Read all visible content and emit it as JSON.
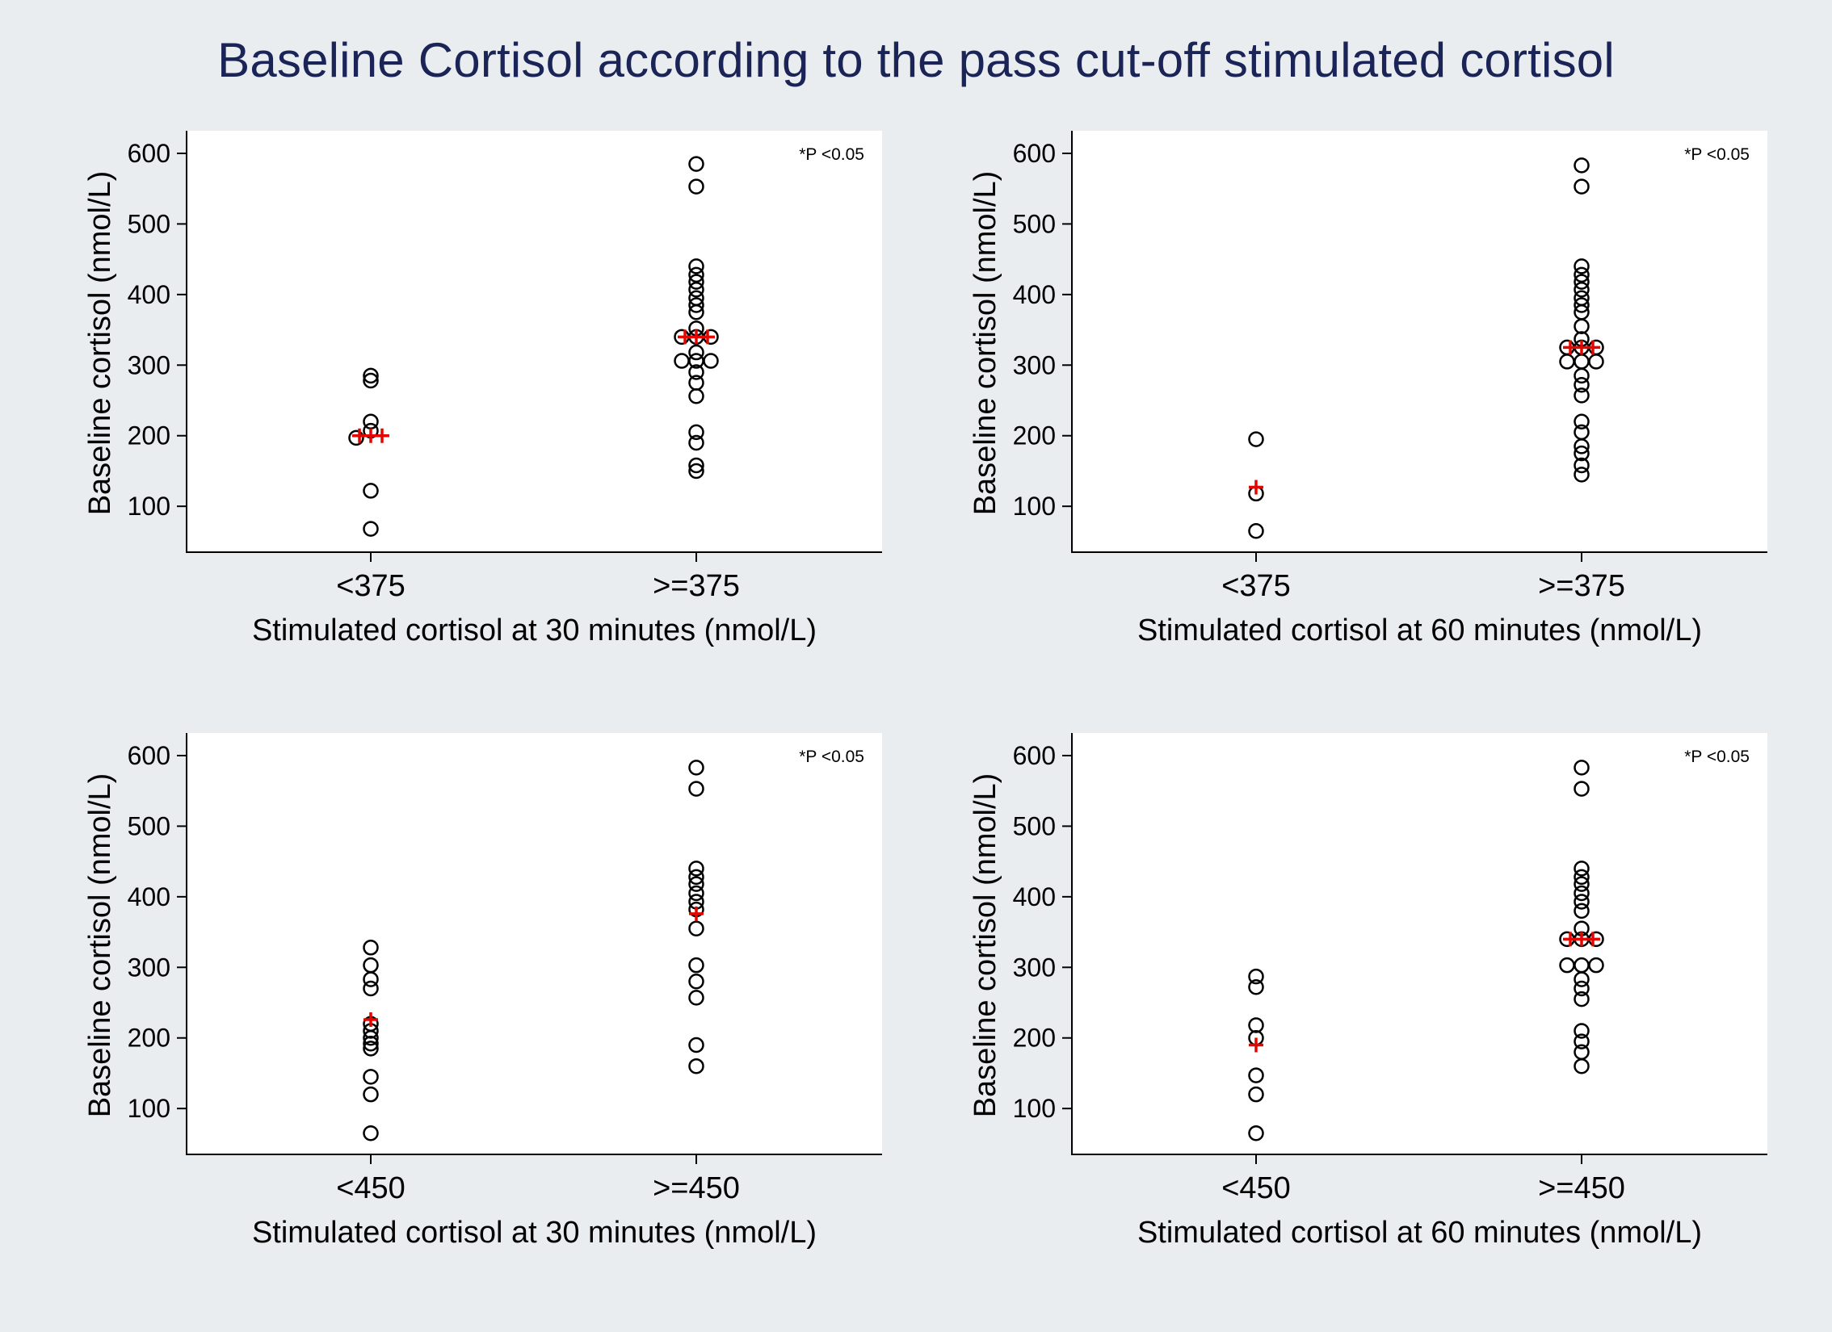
{
  "figure_title": "Baseline Cortisol according to the pass cut-off stimulated cortisol",
  "colors": {
    "background": "#eaedf0",
    "plot": "#ffffff",
    "title": "#1a2456",
    "mean_marker": "#e10600"
  },
  "chart_data": [
    {
      "type": "scatter",
      "xlabel": "Stimulated cortisol at 30 minutes (nmol/L)",
      "ylabel": "Baseline cortisol (nmol/L)",
      "ylim": [
        35,
        632
      ],
      "yticks": [
        100,
        200,
        300,
        400,
        500,
        600
      ],
      "annotation": "*P <0.05",
      "categories": [
        "<375",
        ">=375"
      ],
      "groups": [
        {
          "category": "<375",
          "mean": 200,
          "points": [
            {
              "y": 285,
              "dx": 0
            },
            {
              "y": 278,
              "dx": 0
            },
            {
              "y": 220,
              "dx": 0
            },
            {
              "y": 207,
              "dx": 0
            },
            {
              "y": 197,
              "dx": -1
            },
            {
              "y": 122,
              "dx": 0
            },
            {
              "y": 68,
              "dx": 0
            }
          ]
        },
        {
          "category": ">=375",
          "mean": 340,
          "points": [
            {
              "y": 585,
              "dx": 0
            },
            {
              "y": 553,
              "dx": 0
            },
            {
              "y": 440,
              "dx": 0
            },
            {
              "y": 428,
              "dx": 0
            },
            {
              "y": 418,
              "dx": 0
            },
            {
              "y": 407,
              "dx": 0
            },
            {
              "y": 395,
              "dx": 0
            },
            {
              "y": 385,
              "dx": 0
            },
            {
              "y": 375,
              "dx": 0
            },
            {
              "y": 352,
              "dx": 0
            },
            {
              "y": 340,
              "dx": -1
            },
            {
              "y": 340,
              "dx": 0
            },
            {
              "y": 340,
              "dx": 1
            },
            {
              "y": 318,
              "dx": 0
            },
            {
              "y": 306,
              "dx": -1
            },
            {
              "y": 306,
              "dx": 0
            },
            {
              "y": 306,
              "dx": 1
            },
            {
              "y": 290,
              "dx": 0
            },
            {
              "y": 275,
              "dx": 0
            },
            {
              "y": 256,
              "dx": 0
            },
            {
              "y": 205,
              "dx": 0
            },
            {
              "y": 190,
              "dx": 0
            },
            {
              "y": 158,
              "dx": 0
            },
            {
              "y": 150,
              "dx": 0
            }
          ]
        }
      ]
    },
    {
      "type": "scatter",
      "xlabel": "Stimulated cortisol at 60 minutes (nmol/L)",
      "ylabel": "Baseline cortisol (nmol/L)",
      "ylim": [
        35,
        632
      ],
      "yticks": [
        100,
        200,
        300,
        400,
        500,
        600
      ],
      "annotation": "*P <0.05",
      "categories": [
        "<375",
        ">=375"
      ],
      "groups": [
        {
          "category": "<375",
          "mean": 127,
          "points": [
            {
              "y": 195,
              "dx": 0
            },
            {
              "y": 118,
              "dx": 0
            },
            {
              "y": 65,
              "dx": 0
            }
          ]
        },
        {
          "category": ">=375",
          "mean": 325,
          "points": [
            {
              "y": 583,
              "dx": 0
            },
            {
              "y": 553,
              "dx": 0
            },
            {
              "y": 440,
              "dx": 0
            },
            {
              "y": 428,
              "dx": 0
            },
            {
              "y": 418,
              "dx": 0
            },
            {
              "y": 407,
              "dx": 0
            },
            {
              "y": 395,
              "dx": 0
            },
            {
              "y": 385,
              "dx": 0
            },
            {
              "y": 375,
              "dx": 0
            },
            {
              "y": 355,
              "dx": 0
            },
            {
              "y": 337,
              "dx": 0
            },
            {
              "y": 325,
              "dx": -1
            },
            {
              "y": 325,
              "dx": 0
            },
            {
              "y": 325,
              "dx": 1
            },
            {
              "y": 305,
              "dx": -1
            },
            {
              "y": 305,
              "dx": 0
            },
            {
              "y": 305,
              "dx": 1
            },
            {
              "y": 285,
              "dx": 0
            },
            {
              "y": 272,
              "dx": 0
            },
            {
              "y": 257,
              "dx": 0
            },
            {
              "y": 220,
              "dx": 0
            },
            {
              "y": 205,
              "dx": 0
            },
            {
              "y": 185,
              "dx": 0
            },
            {
              "y": 175,
              "dx": 0
            },
            {
              "y": 158,
              "dx": 0
            },
            {
              "y": 145,
              "dx": 0
            }
          ]
        }
      ]
    },
    {
      "type": "scatter",
      "xlabel": "Stimulated cortisol at 30 minutes (nmol/L)",
      "ylabel": "Baseline cortisol (nmol/L)",
      "ylim": [
        35,
        632
      ],
      "yticks": [
        100,
        200,
        300,
        400,
        500,
        600
      ],
      "annotation": "*P <0.05",
      "categories": [
        "<450",
        ">=450"
      ],
      "groups": [
        {
          "category": "<450",
          "mean": 226,
          "points": [
            {
              "y": 328,
              "dx": 0
            },
            {
              "y": 303,
              "dx": 0
            },
            {
              "y": 283,
              "dx": 0
            },
            {
              "y": 270,
              "dx": 0
            },
            {
              "y": 220,
              "dx": 0
            },
            {
              "y": 210,
              "dx": 0
            },
            {
              "y": 200,
              "dx": 0
            },
            {
              "y": 192,
              "dx": 0
            },
            {
              "y": 185,
              "dx": 0
            },
            {
              "y": 145,
              "dx": 0
            },
            {
              "y": 120,
              "dx": 0
            },
            {
              "y": 65,
              "dx": 0
            }
          ]
        },
        {
          "category": ">=450",
          "mean": 376,
          "points": [
            {
              "y": 583,
              "dx": 0
            },
            {
              "y": 553,
              "dx": 0
            },
            {
              "y": 440,
              "dx": 0
            },
            {
              "y": 428,
              "dx": 0
            },
            {
              "y": 418,
              "dx": 0
            },
            {
              "y": 405,
              "dx": 0
            },
            {
              "y": 393,
              "dx": 0
            },
            {
              "y": 382,
              "dx": 0
            },
            {
              "y": 355,
              "dx": 0
            },
            {
              "y": 303,
              "dx": 0
            },
            {
              "y": 280,
              "dx": 0
            },
            {
              "y": 257,
              "dx": 0
            },
            {
              "y": 190,
              "dx": 0
            },
            {
              "y": 160,
              "dx": 0
            }
          ]
        }
      ]
    },
    {
      "type": "scatter",
      "xlabel": "Stimulated cortisol at 60 minutes (nmol/L)",
      "ylabel": "Baseline cortisol (nmol/L)",
      "ylim": [
        35,
        632
      ],
      "yticks": [
        100,
        200,
        300,
        400,
        500,
        600
      ],
      "annotation": "*P <0.05",
      "categories": [
        "<450",
        ">=450"
      ],
      "groups": [
        {
          "category": "<450",
          "mean": 190,
          "points": [
            {
              "y": 287,
              "dx": 0
            },
            {
              "y": 272,
              "dx": 0
            },
            {
              "y": 218,
              "dx": 0
            },
            {
              "y": 200,
              "dx": 0
            },
            {
              "y": 147,
              "dx": 0
            },
            {
              "y": 120,
              "dx": 0
            },
            {
              "y": 65,
              "dx": 0
            }
          ]
        },
        {
          "category": ">=450",
          "mean": 340,
          "points": [
            {
              "y": 583,
              "dx": 0
            },
            {
              "y": 553,
              "dx": 0
            },
            {
              "y": 440,
              "dx": 0
            },
            {
              "y": 428,
              "dx": 0
            },
            {
              "y": 418,
              "dx": 0
            },
            {
              "y": 405,
              "dx": 0
            },
            {
              "y": 393,
              "dx": 0
            },
            {
              "y": 380,
              "dx": 0
            },
            {
              "y": 355,
              "dx": 0
            },
            {
              "y": 340,
              "dx": -1
            },
            {
              "y": 340,
              "dx": 0
            },
            {
              "y": 340,
              "dx": 1
            },
            {
              "y": 303,
              "dx": -1
            },
            {
              "y": 303,
              "dx": 0
            },
            {
              "y": 303,
              "dx": 1
            },
            {
              "y": 283,
              "dx": 0
            },
            {
              "y": 270,
              "dx": 0
            },
            {
              "y": 255,
              "dx": 0
            },
            {
              "y": 210,
              "dx": 0
            },
            {
              "y": 195,
              "dx": 0
            },
            {
              "y": 180,
              "dx": 0
            },
            {
              "y": 160,
              "dx": 0
            }
          ]
        }
      ]
    }
  ]
}
